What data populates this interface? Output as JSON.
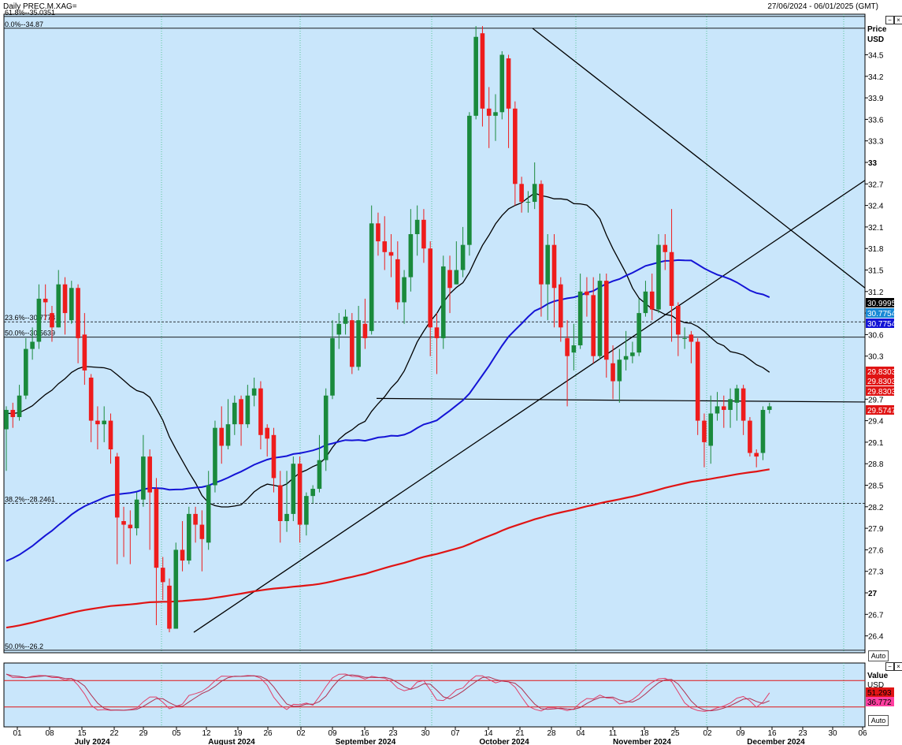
{
  "header": {
    "instrument": "Daily PREC.M.XAG=",
    "date_range": "27/06/2024 - 06/01/2025 (GMT)"
  },
  "price_panel": {
    "axis_title": "Price",
    "axis_unit": "USD",
    "auto_label": "Auto"
  },
  "indicator_panel": {
    "axis_title": "Value",
    "axis_unit": "USD",
    "auto_label": "Auto",
    "value_1": "51.293",
    "value_2": "36.772"
  },
  "colors": {
    "background": "#c9e6fb",
    "up_candle": "#1a8a3c",
    "down_candle": "#ee1c1c",
    "ma_black": "#000000",
    "ma_blue": "#1414d6",
    "ma_red": "#e01414",
    "stoch": "#e0406a"
  },
  "chart_data": {
    "type": "candlestick",
    "title": "Daily PREC.M.XAG=",
    "ylabel": "Price USD",
    "ylim": [
      26.1,
      35.2
    ],
    "yticks": [
      "34.5",
      "34.2",
      "33.9",
      "33.6",
      "33.3",
      "33",
      "32.7",
      "32.4",
      "32.1",
      "31.8",
      "31.5",
      "31.2",
      "30.9",
      "30.6",
      "30.3",
      "29.7",
      "29.4",
      "29.1",
      "28.8",
      "28.5",
      "28.2",
      "27.9",
      "27.6",
      "27.3",
      "27",
      "26.7",
      "26.4"
    ],
    "xticks": [
      "01",
      "08",
      "15",
      "22",
      "29",
      "05",
      "12",
      "19",
      "26",
      "02",
      "09",
      "16",
      "23",
      "30",
      "07",
      "14",
      "21",
      "28",
      "04",
      "11",
      "18",
      "25",
      "02",
      "09",
      "16",
      "23",
      "30",
      "06"
    ],
    "months": [
      "July 2024",
      "August 2024",
      "September 2024",
      "October 2024",
      "November 2024",
      "December 2024"
    ],
    "fib_levels": [
      {
        "label": "0.0%",
        "value": 34.87
      },
      {
        "label": "61.8%",
        "value": 35.0351
      },
      {
        "label": "23.6%",
        "value": 30.7778
      },
      {
        "label": "50.0%",
        "value": 30.5639
      },
      {
        "label": "38.2%",
        "value": 28.2461
      },
      {
        "label": "50.0%",
        "value": 26.2
      }
    ],
    "badges": [
      "30.9995",
      "30.7754",
      "30.7754",
      "29.8303",
      "29.8303",
      "29.8303",
      "29.5747"
    ],
    "candles": [
      [
        29.28,
        29.55,
        28.7,
        29.6
      ],
      [
        29.55,
        29.45,
        29.3,
        29.65
      ],
      [
        29.45,
        29.75,
        29.4,
        29.9
      ],
      [
        29.75,
        30.4,
        29.7,
        30.55
      ],
      [
        30.4,
        30.5,
        30.25,
        30.7
      ],
      [
        30.5,
        31.1,
        30.4,
        31.3
      ],
      [
        31.1,
        31.05,
        30.8,
        31.3
      ],
      [
        30.9,
        30.7,
        30.5,
        31.0
      ],
      [
        30.7,
        31.3,
        30.7,
        31.5
      ],
      [
        31.3,
        30.9,
        30.6,
        31.4
      ],
      [
        30.8,
        31.25,
        30.75,
        31.35
      ],
      [
        31.25,
        30.55,
        30.2,
        31.3
      ],
      [
        30.6,
        30.1,
        29.9,
        30.9
      ],
      [
        30.0,
        29.4,
        29.1,
        30.05
      ],
      [
        29.4,
        29.35,
        29.0,
        29.6
      ],
      [
        29.35,
        29.4,
        29.1,
        29.6
      ],
      [
        29.4,
        29.0,
        28.8,
        29.5
      ],
      [
        28.9,
        28.05,
        27.4,
        28.95
      ],
      [
        28.0,
        27.95,
        27.5,
        28.2
      ],
      [
        27.95,
        27.9,
        27.4,
        28.15
      ],
      [
        27.9,
        28.3,
        27.8,
        28.4
      ],
      [
        28.3,
        28.9,
        28.2,
        29.2
      ],
      [
        28.9,
        28.4,
        27.6,
        29.0
      ],
      [
        28.45,
        27.35,
        26.55,
        28.6
      ],
      [
        27.35,
        27.15,
        26.9,
        27.5
      ],
      [
        27.1,
        26.5,
        26.45,
        27.2
      ],
      [
        26.5,
        27.6,
        26.5,
        27.7
      ],
      [
        27.6,
        27.45,
        27.3,
        28.0
      ],
      [
        27.45,
        28.1,
        27.4,
        28.2
      ],
      [
        28.1,
        27.95,
        27.7,
        28.2
      ],
      [
        27.95,
        27.75,
        27.3,
        28.15
      ],
      [
        27.7,
        28.5,
        27.6,
        28.7
      ],
      [
        28.5,
        29.3,
        28.4,
        29.4
      ],
      [
        29.3,
        29.05,
        28.8,
        29.6
      ],
      [
        29.05,
        29.35,
        29.0,
        29.7
      ],
      [
        29.35,
        29.65,
        29.2,
        29.75
      ],
      [
        29.7,
        29.35,
        29.05,
        29.75
      ],
      [
        29.35,
        29.75,
        29.3,
        29.9
      ],
      [
        29.75,
        29.85,
        29.6,
        30.0
      ],
      [
        29.85,
        29.2,
        29.0,
        29.95
      ],
      [
        29.3,
        29.15,
        28.9,
        29.35
      ],
      [
        29.2,
        28.6,
        28.4,
        29.3
      ],
      [
        28.5,
        28.0,
        27.7,
        28.7
      ],
      [
        28.0,
        28.1,
        27.85,
        28.7
      ],
      [
        28.1,
        28.8,
        28.0,
        28.9
      ],
      [
        28.8,
        27.95,
        27.7,
        28.9
      ],
      [
        27.95,
        28.35,
        27.8,
        28.4
      ],
      [
        28.35,
        28.45,
        28.25,
        28.5
      ],
      [
        28.45,
        28.85,
        28.4,
        29.2
      ],
      [
        28.85,
        29.75,
        28.7,
        29.85
      ],
      [
        29.75,
        30.55,
        29.7,
        30.8
      ],
      [
        30.6,
        30.75,
        30.4,
        30.9
      ],
      [
        30.75,
        30.85,
        30.6,
        30.95
      ],
      [
        30.8,
        30.15,
        30.05,
        30.9
      ],
      [
        30.15,
        30.8,
        30.1,
        31.0
      ],
      [
        30.75,
        30.55,
        30.4,
        31.1
      ],
      [
        30.65,
        32.15,
        30.6,
        32.4
      ],
      [
        32.15,
        31.9,
        31.7,
        32.3
      ],
      [
        31.9,
        31.75,
        31.5,
        32.25
      ],
      [
        31.75,
        31.7,
        31.4,
        32.0
      ],
      [
        31.65,
        31.05,
        30.95,
        31.9
      ],
      [
        31.05,
        31.4,
        30.75,
        31.5
      ],
      [
        31.4,
        32.0,
        31.2,
        32.35
      ],
      [
        32.0,
        32.2,
        31.7,
        32.4
      ],
      [
        32.2,
        31.8,
        31.6,
        32.35
      ],
      [
        31.8,
        30.7,
        30.3,
        31.9
      ],
      [
        30.7,
        30.55,
        30.05,
        30.9
      ],
      [
        30.55,
        31.55,
        30.4,
        31.7
      ],
      [
        31.5,
        31.25,
        30.9,
        31.7
      ],
      [
        31.3,
        31.5,
        31.3,
        31.9
      ],
      [
        31.5,
        31.85,
        31.4,
        32.1
      ],
      [
        31.85,
        33.65,
        31.7,
        33.7
      ],
      [
        33.65,
        34.75,
        33.6,
        34.9
      ],
      [
        34.8,
        33.75,
        33.5,
        34.9
      ],
      [
        33.75,
        33.65,
        33.2,
        34.05
      ],
      [
        33.65,
        33.7,
        33.3,
        33.95
      ],
      [
        33.7,
        34.5,
        33.6,
        34.55
      ],
      [
        34.45,
        33.75,
        33.2,
        34.5
      ],
      [
        33.75,
        32.7,
        32.4,
        33.85
      ],
      [
        32.7,
        32.45,
        32.3,
        32.8
      ],
      [
        32.45,
        32.45,
        32.3,
        32.6
      ],
      [
        32.45,
        32.7,
        32.35,
        33.0
      ],
      [
        32.7,
        31.3,
        30.85,
        32.75
      ],
      [
        31.3,
        31.85,
        30.8,
        32.0
      ],
      [
        31.85,
        31.25,
        30.7,
        32.0
      ],
      [
        31.3,
        30.7,
        30.5,
        31.4
      ],
      [
        30.55,
        30.3,
        29.6,
        30.8
      ],
      [
        30.35,
        30.45,
        30.1,
        30.75
      ],
      [
        30.45,
        31.2,
        30.4,
        31.45
      ],
      [
        31.2,
        31.15,
        30.85,
        31.4
      ],
      [
        31.15,
        30.3,
        30.2,
        31.4
      ],
      [
        30.3,
        31.35,
        30.25,
        31.45
      ],
      [
        31.35,
        30.25,
        30.0,
        31.45
      ],
      [
        30.2,
        29.95,
        29.7,
        30.45
      ],
      [
        29.95,
        30.25,
        29.65,
        30.4
      ],
      [
        30.25,
        30.3,
        30.1,
        30.65
      ],
      [
        30.3,
        30.35,
        30.2,
        30.5
      ],
      [
        30.35,
        30.9,
        30.3,
        31.1
      ],
      [
        30.9,
        31.2,
        30.85,
        31.35
      ],
      [
        31.2,
        30.95,
        30.8,
        31.45
      ],
      [
        30.95,
        31.85,
        30.9,
        32.0
      ],
      [
        31.85,
        31.75,
        31.5,
        32.0
      ],
      [
        31.75,
        31.0,
        30.5,
        32.35
      ],
      [
        31.0,
        30.6,
        30.3,
        31.05
      ],
      [
        30.55,
        30.55,
        30.4,
        30.7
      ],
      [
        30.6,
        30.5,
        30.2,
        30.65
      ],
      [
        30.5,
        29.4,
        29.2,
        30.55
      ],
      [
        29.4,
        29.1,
        28.75,
        29.5
      ],
      [
        29.05,
        29.5,
        28.8,
        29.75
      ],
      [
        29.5,
        29.6,
        29.4,
        29.8
      ],
      [
        29.6,
        29.55,
        29.3,
        29.75
      ],
      [
        29.55,
        29.7,
        29.3,
        29.85
      ],
      [
        29.65,
        29.85,
        29.4,
        29.9
      ],
      [
        29.85,
        29.4,
        29.2,
        29.9
      ],
      [
        29.4,
        28.95,
        28.9,
        29.45
      ],
      [
        28.95,
        28.9,
        28.75,
        29.0
      ],
      [
        28.95,
        29.55,
        28.85,
        29.6
      ],
      [
        29.55,
        29.6,
        29.5,
        29.65
      ]
    ]
  }
}
